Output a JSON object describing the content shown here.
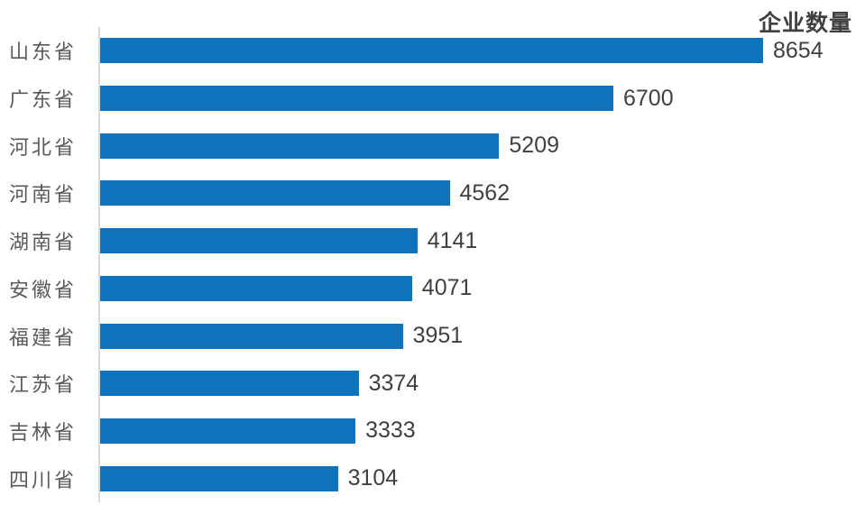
{
  "chart_data": {
    "type": "bar",
    "orientation": "horizontal",
    "title": "企业数量",
    "categories": [
      "山东省",
      "广东省",
      "河北省",
      "河南省",
      "湖南省",
      "安徽省",
      "福建省",
      "江苏省",
      "吉林省",
      "四川省"
    ],
    "values": [
      8654,
      6700,
      5209,
      4562,
      4141,
      4071,
      3951,
      3374,
      3333,
      3104
    ],
    "value_labels_shown": true,
    "xlabel": "",
    "ylabel": "",
    "xlim": [
      0,
      8654
    ],
    "grid": false,
    "legend": "none",
    "bar_color": "#0E73BC",
    "axis_line_color": "#D9D9D9",
    "category_label_color": "#595959",
    "value_label_color": "#404040",
    "title_color": "#404040"
  }
}
